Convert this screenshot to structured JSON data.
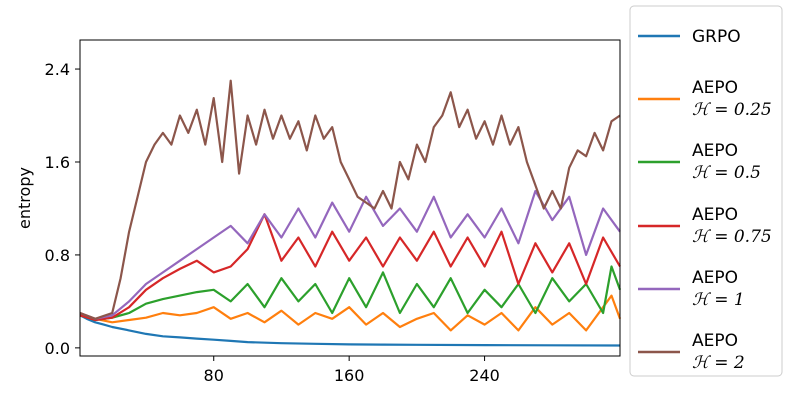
{
  "chart_data": {
    "type": "line",
    "title": "",
    "xlabel": "",
    "ylabel": "entropy",
    "xlim": [
      1,
      320
    ],
    "ylim": [
      -0.07,
      2.65
    ],
    "xticks": [
      80,
      160,
      240
    ],
    "xtick_labels": [
      "80",
      "160",
      "240"
    ],
    "yticks": [
      0.0,
      0.8,
      1.6,
      2.4
    ],
    "ytick_labels": [
      "0.0",
      "0.8",
      "1.6",
      "2.4"
    ],
    "grid": false,
    "legend_position": "outside-right",
    "series": [
      {
        "name": "GRPO",
        "color": "#1f77b4",
        "points": [
          [
            1,
            0.28
          ],
          [
            5,
            0.25
          ],
          [
            10,
            0.22
          ],
          [
            15,
            0.2
          ],
          [
            20,
            0.18
          ],
          [
            30,
            0.15
          ],
          [
            40,
            0.12
          ],
          [
            50,
            0.1
          ],
          [
            60,
            0.09
          ],
          [
            70,
            0.08
          ],
          [
            80,
            0.07
          ],
          [
            90,
            0.06
          ],
          [
            100,
            0.05
          ],
          [
            120,
            0.04
          ],
          [
            140,
            0.035
          ],
          [
            160,
            0.03
          ],
          [
            180,
            0.028
          ],
          [
            200,
            0.026
          ],
          [
            240,
            0.024
          ],
          [
            280,
            0.022
          ],
          [
            320,
            0.02
          ]
        ]
      },
      {
        "name": "AEPO",
        "subtitle": "ℋ = 0.25",
        "color": "#ff7f0e",
        "points": [
          [
            1,
            0.3
          ],
          [
            10,
            0.25
          ],
          [
            20,
            0.22
          ],
          [
            30,
            0.24
          ],
          [
            40,
            0.26
          ],
          [
            50,
            0.3
          ],
          [
            60,
            0.28
          ],
          [
            70,
            0.3
          ],
          [
            80,
            0.35
          ],
          [
            90,
            0.25
          ],
          [
            100,
            0.3
          ],
          [
            110,
            0.22
          ],
          [
            120,
            0.32
          ],
          [
            130,
            0.2
          ],
          [
            140,
            0.3
          ],
          [
            150,
            0.25
          ],
          [
            160,
            0.35
          ],
          [
            170,
            0.2
          ],
          [
            180,
            0.3
          ],
          [
            190,
            0.18
          ],
          [
            200,
            0.25
          ],
          [
            210,
            0.3
          ],
          [
            220,
            0.15
          ],
          [
            230,
            0.28
          ],
          [
            240,
            0.2
          ],
          [
            250,
            0.3
          ],
          [
            260,
            0.15
          ],
          [
            270,
            0.35
          ],
          [
            280,
            0.2
          ],
          [
            290,
            0.3
          ],
          [
            300,
            0.15
          ],
          [
            310,
            0.35
          ],
          [
            315,
            0.45
          ],
          [
            320,
            0.25
          ]
        ]
      },
      {
        "name": "AEPO",
        "subtitle": "ℋ = 0.5",
        "color": "#2ca02c",
        "points": [
          [
            1,
            0.28
          ],
          [
            10,
            0.24
          ],
          [
            20,
            0.26
          ],
          [
            30,
            0.3
          ],
          [
            40,
            0.38
          ],
          [
            50,
            0.42
          ],
          [
            60,
            0.45
          ],
          [
            70,
            0.48
          ],
          [
            80,
            0.5
          ],
          [
            90,
            0.4
          ],
          [
            100,
            0.55
          ],
          [
            110,
            0.35
          ],
          [
            120,
            0.6
          ],
          [
            130,
            0.4
          ],
          [
            140,
            0.55
          ],
          [
            150,
            0.3
          ],
          [
            160,
            0.6
          ],
          [
            170,
            0.35
          ],
          [
            180,
            0.65
          ],
          [
            190,
            0.3
          ],
          [
            200,
            0.55
          ],
          [
            210,
            0.35
          ],
          [
            220,
            0.6
          ],
          [
            230,
            0.3
          ],
          [
            240,
            0.5
          ],
          [
            250,
            0.35
          ],
          [
            260,
            0.55
          ],
          [
            270,
            0.3
          ],
          [
            280,
            0.6
          ],
          [
            290,
            0.4
          ],
          [
            300,
            0.55
          ],
          [
            310,
            0.3
          ],
          [
            315,
            0.7
          ],
          [
            320,
            0.5
          ]
        ]
      },
      {
        "name": "AEPO",
        "subtitle": "ℋ = 0.75",
        "color": "#d62728",
        "points": [
          [
            1,
            0.28
          ],
          [
            10,
            0.24
          ],
          [
            20,
            0.26
          ],
          [
            30,
            0.35
          ],
          [
            40,
            0.5
          ],
          [
            50,
            0.6
          ],
          [
            60,
            0.68
          ],
          [
            70,
            0.75
          ],
          [
            80,
            0.65
          ],
          [
            90,
            0.7
          ],
          [
            100,
            0.85
          ],
          [
            110,
            1.15
          ],
          [
            120,
            0.75
          ],
          [
            130,
            0.95
          ],
          [
            140,
            0.7
          ],
          [
            150,
            1.0
          ],
          [
            160,
            0.75
          ],
          [
            170,
            0.95
          ],
          [
            180,
            0.7
          ],
          [
            190,
            0.95
          ],
          [
            200,
            0.75
          ],
          [
            210,
            1.0
          ],
          [
            220,
            0.7
          ],
          [
            230,
            0.95
          ],
          [
            240,
            0.7
          ],
          [
            250,
            1.0
          ],
          [
            260,
            0.55
          ],
          [
            270,
            0.9
          ],
          [
            280,
            0.65
          ],
          [
            290,
            0.9
          ],
          [
            300,
            0.55
          ],
          [
            310,
            0.95
          ],
          [
            320,
            0.7
          ]
        ]
      },
      {
        "name": "AEPO",
        "subtitle": "ℋ = 1",
        "color": "#9467bd",
        "points": [
          [
            1,
            0.3
          ],
          [
            10,
            0.25
          ],
          [
            20,
            0.28
          ],
          [
            30,
            0.4
          ],
          [
            40,
            0.55
          ],
          [
            50,
            0.65
          ],
          [
            60,
            0.75
          ],
          [
            70,
            0.85
          ],
          [
            80,
            0.95
          ],
          [
            90,
            1.05
          ],
          [
            100,
            0.9
          ],
          [
            110,
            1.15
          ],
          [
            120,
            0.95
          ],
          [
            130,
            1.2
          ],
          [
            140,
            0.95
          ],
          [
            150,
            1.25
          ],
          [
            160,
            1.0
          ],
          [
            170,
            1.3
          ],
          [
            180,
            1.05
          ],
          [
            190,
            1.2
          ],
          [
            200,
            1.0
          ],
          [
            210,
            1.3
          ],
          [
            220,
            0.95
          ],
          [
            230,
            1.15
          ],
          [
            240,
            0.95
          ],
          [
            250,
            1.2
          ],
          [
            260,
            0.9
          ],
          [
            270,
            1.35
          ],
          [
            280,
            1.1
          ],
          [
            290,
            1.3
          ],
          [
            300,
            0.8
          ],
          [
            310,
            1.2
          ],
          [
            320,
            1.0
          ]
        ]
      },
      {
        "name": "AEPO",
        "subtitle": "ℋ = 2",
        "color": "#8c564b",
        "points": [
          [
            1,
            0.3
          ],
          [
            10,
            0.25
          ],
          [
            20,
            0.3
          ],
          [
            25,
            0.6
          ],
          [
            30,
            1.0
          ],
          [
            35,
            1.3
          ],
          [
            40,
            1.6
          ],
          [
            45,
            1.75
          ],
          [
            50,
            1.85
          ],
          [
            55,
            1.75
          ],
          [
            60,
            2.0
          ],
          [
            65,
            1.85
          ],
          [
            70,
            2.05
          ],
          [
            75,
            1.75
          ],
          [
            80,
            2.15
          ],
          [
            85,
            1.6
          ],
          [
            90,
            2.3
          ],
          [
            95,
            1.5
          ],
          [
            100,
            2.0
          ],
          [
            105,
            1.75
          ],
          [
            110,
            2.05
          ],
          [
            115,
            1.8
          ],
          [
            120,
            2.0
          ],
          [
            125,
            1.8
          ],
          [
            130,
            1.95
          ],
          [
            135,
            1.7
          ],
          [
            140,
            2.0
          ],
          [
            145,
            1.8
          ],
          [
            150,
            1.9
          ],
          [
            155,
            1.6
          ],
          [
            160,
            1.45
          ],
          [
            165,
            1.3
          ],
          [
            170,
            1.25
          ],
          [
            175,
            1.2
          ],
          [
            180,
            1.35
          ],
          [
            185,
            1.2
          ],
          [
            190,
            1.6
          ],
          [
            195,
            1.45
          ],
          [
            200,
            1.75
          ],
          [
            205,
            1.6
          ],
          [
            210,
            1.9
          ],
          [
            215,
            2.0
          ],
          [
            220,
            2.2
          ],
          [
            225,
            1.9
          ],
          [
            230,
            2.05
          ],
          [
            235,
            1.8
          ],
          [
            240,
            1.95
          ],
          [
            245,
            1.75
          ],
          [
            250,
            2.0
          ],
          [
            255,
            1.75
          ],
          [
            260,
            1.9
          ],
          [
            265,
            1.6
          ],
          [
            270,
            1.4
          ],
          [
            275,
            1.2
          ],
          [
            280,
            1.35
          ],
          [
            285,
            1.2
          ],
          [
            290,
            1.55
          ],
          [
            295,
            1.7
          ],
          [
            300,
            1.65
          ],
          [
            305,
            1.85
          ],
          [
            310,
            1.7
          ],
          [
            315,
            1.95
          ],
          [
            320,
            2.0
          ]
        ]
      }
    ]
  }
}
